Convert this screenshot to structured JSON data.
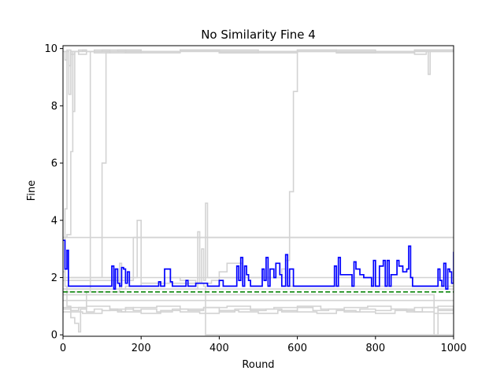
{
  "chart_data": {
    "type": "line",
    "title": "No Similarity Fine 4",
    "xlabel": "Round",
    "ylabel": "Fine",
    "xlim": [
      0,
      1000
    ],
    "ylim": [
      -0.05,
      10.1
    ],
    "xticks": [
      0,
      200,
      400,
      600,
      800,
      1000
    ],
    "yticks": [
      0,
      2,
      4,
      6,
      8,
      10
    ],
    "grid": false,
    "colors": {
      "background_series": "#d3d3d3",
      "highlight": "#0000ff",
      "reference": "#008000"
    },
    "reference_line": {
      "y": 1.5,
      "style": "dashed"
    },
    "highlight_series": {
      "x": [
        0,
        5,
        10,
        14,
        18,
        22,
        120,
        125,
        130,
        134,
        140,
        145,
        150,
        155,
        160,
        165,
        170,
        175,
        180,
        200,
        240,
        245,
        250,
        255,
        260,
        270,
        275,
        280,
        285,
        290,
        310,
        315,
        320,
        330,
        340,
        345,
        350,
        370,
        380,
        395,
        400,
        410,
        420,
        430,
        440,
        445,
        450,
        455,
        460,
        465,
        470,
        475,
        480,
        490,
        500,
        510,
        515,
        520,
        525,
        530,
        540,
        545,
        555,
        560,
        570,
        575,
        580,
        590,
        600,
        680,
        690,
        695,
        700,
        705,
        710,
        740,
        745,
        750,
        760,
        770,
        780,
        790,
        795,
        800,
        810,
        820,
        825,
        830,
        835,
        840,
        855,
        860,
        870,
        880,
        885,
        890,
        895,
        900,
        905,
        910,
        915,
        920,
        960,
        965,
        970,
        975,
        980,
        985,
        990,
        995,
        1000
      ],
      "y": [
        3.3,
        2.3,
        2.95,
        1.7,
        1.7,
        1.7,
        1.7,
        2.4,
        1.6,
        2.3,
        1.8,
        1.7,
        2.35,
        2.3,
        1.8,
        2.2,
        1.7,
        1.7,
        1.7,
        1.7,
        1.7,
        1.85,
        1.7,
        1.7,
        2.3,
        2.3,
        1.85,
        1.7,
        1.7,
        1.7,
        1.7,
        1.9,
        1.7,
        1.7,
        1.8,
        1.8,
        1.8,
        1.7,
        1.7,
        1.7,
        1.9,
        1.7,
        1.7,
        1.7,
        1.7,
        2.4,
        1.9,
        2.7,
        1.7,
        2.4,
        2.1,
        1.9,
        1.7,
        1.7,
        1.7,
        2.3,
        1.9,
        2.7,
        1.7,
        2.3,
        2.0,
        2.5,
        2.1,
        1.7,
        2.8,
        1.7,
        2.3,
        1.7,
        1.7,
        1.7,
        1.7,
        2.4,
        1.7,
        2.7,
        2.1,
        1.7,
        2.55,
        2.3,
        2.1,
        2.0,
        2.0,
        1.7,
        2.6,
        1.7,
        2.4,
        2.6,
        1.7,
        2.6,
        1.7,
        2.1,
        2.6,
        2.4,
        2.2,
        2.3,
        3.1,
        2.0,
        1.7,
        1.7,
        1.7,
        1.7,
        1.7,
        1.7,
        2.3,
        1.9,
        1.7,
        2.5,
        1.6,
        2.3,
        2.2,
        1.8,
        2.9
      ]
    },
    "background_series": [
      {
        "x": [
          0,
          5,
          10,
          15,
          20,
          25,
          30,
          40,
          60,
          100,
          200,
          300,
          400,
          500,
          600,
          700,
          800,
          900,
          930,
          935,
          940,
          1000
        ],
        "y": [
          9.9,
          9.6,
          9.9,
          8.4,
          9.9,
          7.8,
          9.9,
          9.8,
          9.9,
          9.95,
          9.85,
          9.9,
          9.95,
          9.85,
          9.9,
          9.85,
          9.9,
          9.8,
          9.9,
          9.1,
          9.9,
          9.9
        ]
      },
      {
        "x": [
          0,
          10,
          20,
          30,
          40,
          60,
          80,
          120,
          160,
          200,
          300,
          400,
          500,
          600,
          700,
          800,
          900,
          1000
        ],
        "y": [
          9.9,
          9.95,
          9.8,
          9.9,
          9.95,
          9.9,
          9.85,
          9.9,
          9.95,
          9.9,
          9.95,
          9.85,
          9.9,
          9.95,
          9.85,
          9.9,
          9.95,
          9.9
        ]
      },
      {
        "x": [
          0,
          5,
          10,
          15,
          20,
          30,
          40,
          50,
          60,
          80,
          120,
          200,
          300,
          400,
          500,
          600,
          700,
          800,
          900,
          1000
        ],
        "y": [
          1.9,
          4.4,
          9.9,
          9.4,
          9.9,
          9.9,
          9.9,
          9.95,
          9.9,
          9.95,
          9.85,
          9.9,
          9.95,
          9.9,
          9.9,
          9.9,
          9.95,
          9.85,
          9.9,
          9.9
        ]
      },
      {
        "x": [
          0,
          5,
          10,
          20,
          25,
          30,
          40,
          50,
          60,
          70,
          100,
          200,
          300,
          400,
          500,
          600,
          700,
          800,
          900,
          1000
        ],
        "y": [
          3.4,
          3.4,
          3.5,
          6.4,
          9.9,
          9.9,
          9.9,
          9.9,
          9.9,
          9.9,
          9.9,
          9.9,
          9.9,
          9.9,
          9.9,
          9.9,
          9.9,
          9.9,
          9.9,
          9.9
        ]
      },
      {
        "x": [
          0,
          5,
          10,
          20,
          30,
          40,
          45,
          60,
          70,
          75,
          80,
          90,
          100
        ],
        "y": [
          2.2,
          1.7,
          1.0,
          0.6,
          0.4,
          0.1,
          0.9,
          1.5,
          9.9,
          9.9,
          9.9,
          9.9,
          9.9
        ]
      },
      {
        "x": [
          0,
          40,
          60,
          80,
          100,
          110,
          120,
          125,
          130,
          140,
          160,
          200,
          300,
          400,
          500,
          600,
          700,
          800,
          900,
          1000
        ],
        "y": [
          2.0,
          2.0,
          2.0,
          2.0,
          6.0,
          9.9,
          9.9,
          9.9,
          9.9,
          9.95,
          9.85,
          9.9,
          9.95,
          9.85,
          9.9,
          9.95,
          9.85,
          9.9,
          9.95,
          9.9
        ]
      },
      {
        "x": [
          0,
          1000
        ],
        "y": [
          3.4,
          3.4
        ]
      },
      {
        "x": [
          0,
          50,
          100,
          150,
          170,
          180,
          200,
          300,
          400,
          500,
          600,
          700,
          800,
          900,
          1000
        ],
        "y": [
          2.0,
          2.0,
          2.0,
          2.0,
          2.0,
          3.4,
          3.4,
          3.4,
          3.4,
          3.4,
          3.4,
          3.4,
          3.4,
          3.4,
          3.4
        ]
      },
      {
        "x": [
          0,
          100,
          200,
          300,
          340,
          345,
          350,
          355,
          360,
          365,
          370,
          400,
          500,
          550,
          560,
          570,
          580,
          590,
          600,
          700,
          800,
          900,
          1000
        ],
        "y": [
          1.6,
          1.6,
          1.6,
          1.6,
          1.6,
          3.6,
          1.8,
          3.0,
          1.9,
          4.6,
          2.0,
          2.0,
          2.0,
          2.0,
          2.3,
          2.6,
          5.0,
          8.5,
          9.9,
          9.9,
          9.9,
          9.9,
          9.9
        ]
      },
      {
        "x": [
          0,
          100,
          140,
          145,
          150,
          160,
          200,
          260,
          300,
          340,
          380,
          400,
          420,
          460,
          500,
          560,
          580,
          600,
          700,
          800,
          900,
          1000
        ],
        "y": [
          1.5,
          1.5,
          1.5,
          2.5,
          1.6,
          1.7,
          1.8,
          2.0,
          1.9,
          1.8,
          1.9,
          2.2,
          2.5,
          2.0,
          2.0,
          2.0,
          1.7,
          1.7,
          1.7,
          1.7,
          1.7,
          1.7
        ]
      },
      {
        "x": [
          0,
          100,
          180,
          190,
          200,
          300,
          360,
          365,
          370,
          400,
          500,
          600,
          700,
          800,
          900,
          1000
        ],
        "y": [
          1.9,
          1.9,
          2.0,
          4.0,
          1.8,
          1.8,
          1.7,
          0.0,
          0.0,
          0.0,
          0.0,
          0.0,
          0.0,
          0.0,
          0.0,
          0.0
        ]
      },
      {
        "x": [
          0,
          100,
          200,
          300,
          400,
          500,
          600,
          700,
          800,
          900,
          1000
        ],
        "y": [
          1.2,
          1.2,
          1.2,
          1.2,
          1.2,
          1.2,
          1.2,
          1.2,
          1.2,
          1.2,
          1.2
        ]
      },
      {
        "x": [
          0,
          100,
          200,
          300,
          400,
          500,
          600,
          700,
          800,
          900,
          940,
          950,
          960,
          1000
        ],
        "y": [
          1.4,
          1.4,
          1.4,
          1.4,
          1.4,
          1.4,
          1.4,
          1.4,
          1.4,
          1.4,
          1.4,
          0.0,
          0.9,
          0.9
        ]
      },
      {
        "x": [
          0,
          20,
          40,
          60,
          80,
          100,
          120,
          140,
          160,
          180,
          200,
          240,
          280,
          320,
          360,
          400,
          440,
          480,
          520,
          560,
          600,
          640,
          680,
          720,
          760,
          800,
          840,
          880,
          920,
          960,
          1000
        ],
        "y": [
          0.9,
          0.85,
          0.95,
          0.8,
          0.9,
          0.85,
          0.9,
          0.8,
          0.95,
          0.85,
          0.9,
          0.8,
          0.9,
          0.85,
          0.95,
          0.8,
          0.9,
          0.85,
          0.9,
          0.8,
          0.95,
          0.85,
          0.9,
          0.8,
          0.9,
          0.85,
          0.9,
          0.8,
          0.95,
          0.85,
          0.9
        ]
      },
      {
        "x": [
          0,
          50,
          100,
          150,
          200,
          250,
          300,
          350,
          400,
          450,
          500,
          550,
          600,
          650,
          700,
          750,
          800,
          850,
          900,
          950,
          1000
        ],
        "y": [
          0.8,
          0.75,
          0.85,
          0.8,
          0.75,
          0.85,
          0.8,
          0.75,
          0.85,
          0.8,
          0.75,
          0.85,
          0.8,
          0.75,
          0.85,
          0.8,
          0.75,
          0.85,
          0.8,
          0.75,
          0.85
        ]
      },
      {
        "x": [
          0,
          60,
          120,
          180,
          240,
          300,
          360,
          420,
          480,
          540,
          600,
          660,
          720,
          780,
          840,
          900,
          960,
          1000
        ],
        "y": [
          0.95,
          1.0,
          0.9,
          0.95,
          1.0,
          0.9,
          0.95,
          1.0,
          0.9,
          0.95,
          1.0,
          0.9,
          0.95,
          1.0,
          0.9,
          0.95,
          1.0,
          0.9
        ]
      },
      {
        "x": [
          0,
          100,
          200,
          300,
          400,
          500,
          600,
          700,
          800,
          900,
          1000
        ],
        "y": [
          2.0,
          2.0,
          2.0,
          2.0,
          2.0,
          2.0,
          2.0,
          2.0,
          2.0,
          2.0,
          2.0
        ]
      },
      {
        "x": [
          0,
          100,
          200,
          300,
          400,
          500,
          600,
          700,
          800,
          900,
          1000
        ],
        "y": [
          1.6,
          1.6,
          1.6,
          1.6,
          1.6,
          1.6,
          1.6,
          1.6,
          1.6,
          1.6,
          1.6
        ]
      }
    ]
  }
}
